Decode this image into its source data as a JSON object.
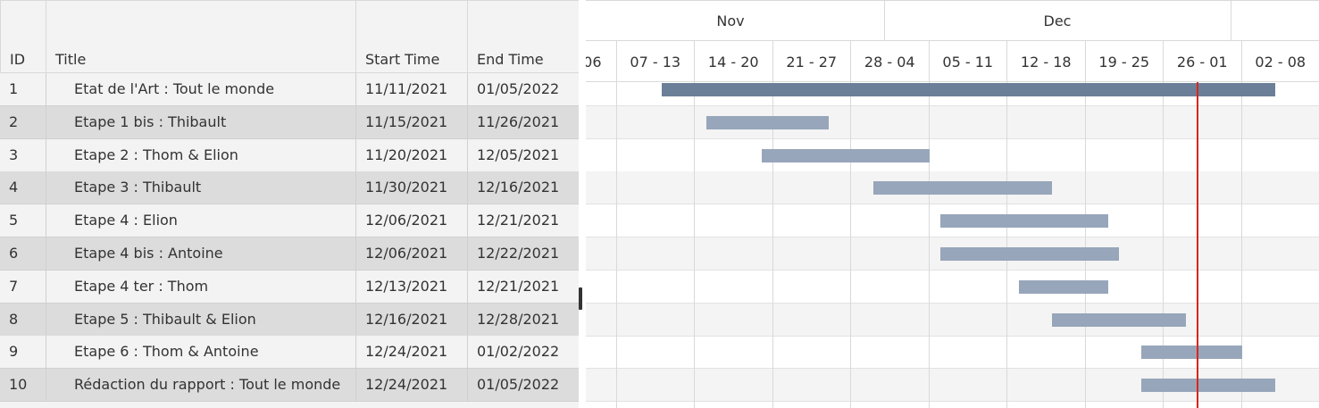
{
  "grid": {
    "headers": {
      "id": "ID",
      "title": "Title",
      "start": "Start Time",
      "end": "End Time"
    },
    "rows": [
      {
        "id": "1",
        "title": "Etat de l'Art : Tout le monde",
        "start": "11/11/2021",
        "end": "01/05/2022"
      },
      {
        "id": "2",
        "title": "Etape 1 bis : Thibault",
        "start": "11/15/2021",
        "end": "11/26/2021"
      },
      {
        "id": "3",
        "title": "Etape 2 : Thom & Elion",
        "start": "11/20/2021",
        "end": "12/05/2021"
      },
      {
        "id": "4",
        "title": "Etape 3 : Thibault",
        "start": "11/30/2021",
        "end": "12/16/2021"
      },
      {
        "id": "5",
        "title": "Etape 4 : Elion",
        "start": "12/06/2021",
        "end": "12/21/2021"
      },
      {
        "id": "6",
        "title": "Etape 4 bis : Antoine",
        "start": "12/06/2021",
        "end": "12/22/2021"
      },
      {
        "id": "7",
        "title": "Etape 4 ter : Thom",
        "start": "12/13/2021",
        "end": "12/21/2021"
      },
      {
        "id": "8",
        "title": "Etape 5 : Thibault & Elion",
        "start": "12/16/2021",
        "end": "12/28/2021"
      },
      {
        "id": "9",
        "title": "Etape 6 : Thom & Antoine",
        "start": "12/24/2021",
        "end": "01/02/2022"
      },
      {
        "id": "10",
        "title": "Rédaction du rapport : Tout le monde",
        "start": "12/24/2021",
        "end": "01/05/2022"
      }
    ]
  },
  "timeline": {
    "months": [
      "Nov",
      "Dec"
    ],
    "weeks": [
      "06",
      "07 - 13",
      "14 - 20",
      "21 - 27",
      "28 - 04",
      "05 - 11",
      "12 - 18",
      "19 - 25",
      "26 - 01",
      "02 - 08"
    ],
    "today": "12/29/2021"
  },
  "colors": {
    "bar_parent": "#6b7f99",
    "bar_child": "#97a6ba",
    "today_line": "#d9261c",
    "row_alt": "#dcdcdc",
    "row_normal": "#f3f3f3"
  }
}
